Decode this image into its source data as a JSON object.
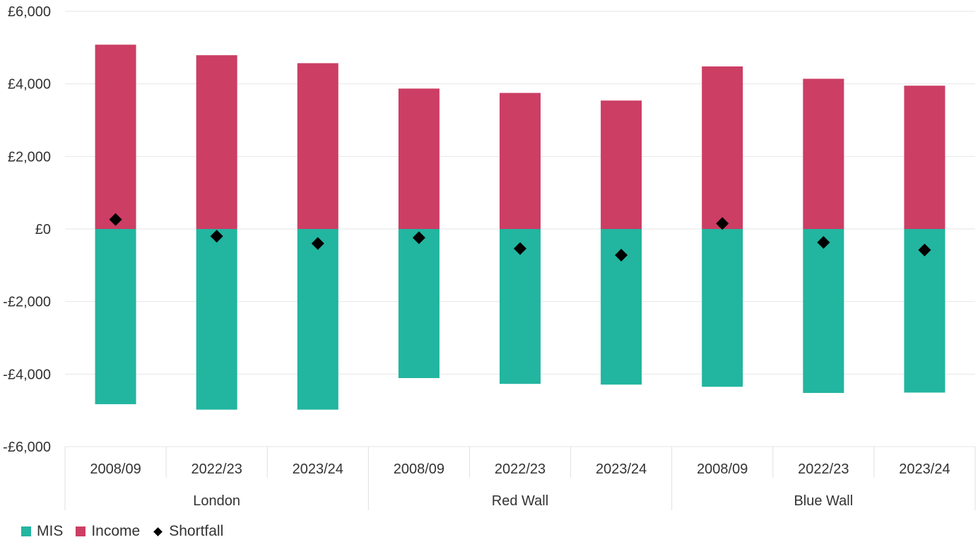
{
  "chart_data": {
    "type": "bar",
    "title": "",
    "xlabel": "",
    "ylabel": "",
    "ylim": [
      -6000,
      6000
    ],
    "yticks": [
      6000,
      4000,
      2000,
      0,
      -2000,
      -4000,
      -6000
    ],
    "ytick_labels": [
      "£6,000",
      "£4,000",
      "£2,000",
      "£0",
      "-£2,000",
      "-£4,000",
      "-£6,000"
    ],
    "categories": [
      "2008/09",
      "2022/23",
      "2023/24",
      "2008/09",
      "2022/23",
      "2023/24",
      "2008/09",
      "2022/23",
      "2023/24"
    ],
    "groups": [
      {
        "label": "London",
        "span": 3
      },
      {
        "label": "Red Wall",
        "span": 3
      },
      {
        "label": "Blue Wall",
        "span": 3
      }
    ],
    "stacked": true,
    "grid": true,
    "legend_position": "bottom-left",
    "series": [
      {
        "name": "MIS",
        "color": "#22b5a0",
        "kind": "bar",
        "values": [
          -4830,
          -4980,
          -4980,
          -4110,
          -4270,
          -4290,
          -4350,
          -4520,
          -4510
        ]
      },
      {
        "name": "Income",
        "color": "#cc3e64",
        "kind": "bar",
        "values": [
          5080,
          4790,
          4570,
          3870,
          3750,
          3540,
          4480,
          4140,
          3950
        ]
      },
      {
        "name": "Shortfall",
        "color": "#000000",
        "kind": "marker",
        "values": [
          260,
          -200,
          -400,
          -240,
          -540,
          -720,
          150,
          -370,
          -580
        ]
      }
    ]
  }
}
